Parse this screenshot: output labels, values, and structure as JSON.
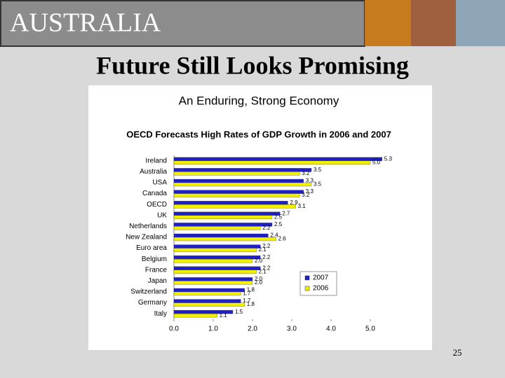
{
  "header": {
    "title": "AUSTRALIA"
  },
  "slide_title": "Future Still Looks Promising",
  "page_number": "25",
  "chart_data": {
    "type": "bar",
    "orientation": "horizontal",
    "title": "An Enduring, Strong Economy",
    "subtitle": "OECD Forecasts High Rates of GDP Growth in 2006 and 2007",
    "categories": [
      "Ireland",
      "Australia",
      "USA",
      "Canada",
      "OECD",
      "UK",
      "Netherlands",
      "New Zealand",
      "Euro area",
      "Belgium",
      "France",
      "Japan",
      "Switzerland",
      "Germany",
      "Italy"
    ],
    "series": [
      {
        "name": "2007",
        "color": "#1f1fc8",
        "values": [
          5.3,
          3.5,
          3.3,
          3.3,
          2.9,
          2.7,
          2.5,
          2.4,
          2.2,
          2.2,
          2.2,
          2.0,
          1.8,
          1.7,
          1.5
        ],
        "value_labels": [
          "5.3",
          "3.5",
          "3.3",
          "3.3",
          "2.9",
          "2.7",
          "2.5",
          "2.4",
          "2.2",
          "2.2",
          "2.2",
          "2.0",
          "1.8",
          "1.7",
          "1.5"
        ]
      },
      {
        "name": "2006",
        "color": "#f0f000",
        "values": [
          5.0,
          3.2,
          3.5,
          3.2,
          3.1,
          2.5,
          2.2,
          2.6,
          2.1,
          2.0,
          2.1,
          2.0,
          1.7,
          1.8,
          1.1
        ],
        "value_labels": [
          "5.0",
          "3.2",
          "3.5",
          "3.2",
          "3.1",
          "2.5",
          "2.2",
          "2.6",
          "2.1",
          "2.0",
          "2.1",
          "2.0",
          "1.7",
          "1.8",
          "1.1"
        ]
      }
    ],
    "xlim": [
      0,
      5
    ],
    "xticks": [
      {
        "value": 0,
        "label": "0.0"
      },
      {
        "value": 1,
        "label": "1.0"
      },
      {
        "value": 2,
        "label": "2.0"
      },
      {
        "value": 3,
        "label": "3.0"
      },
      {
        "value": 4,
        "label": "4.0"
      },
      {
        "value": 5,
        "label": "5.0"
      }
    ],
    "legend": "lower-right"
  }
}
